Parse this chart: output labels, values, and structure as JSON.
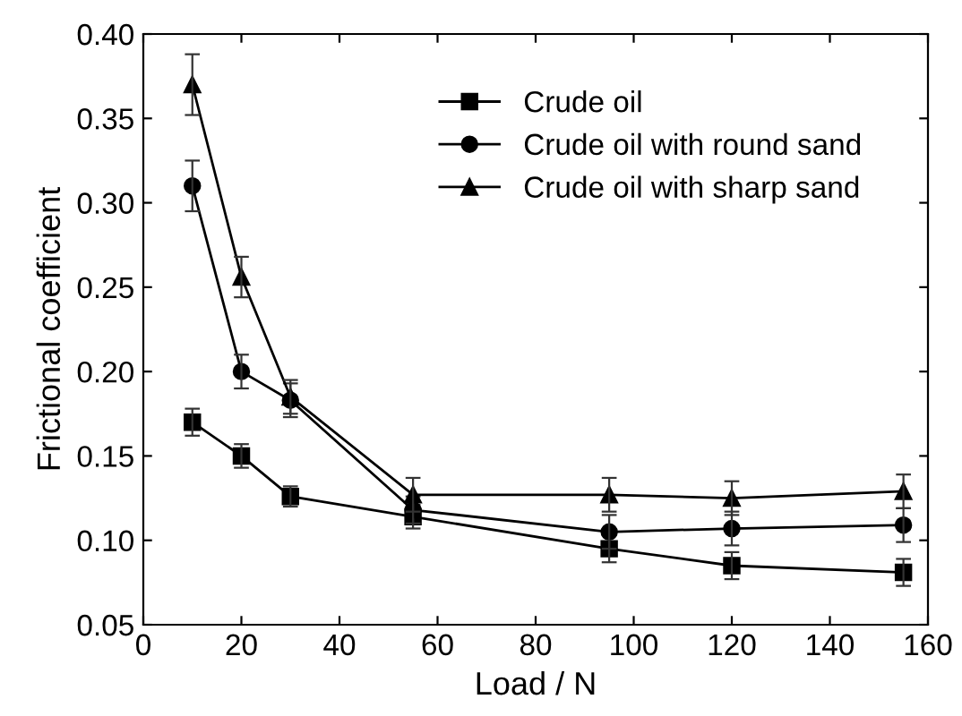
{
  "chart_data": {
    "type": "line",
    "xlabel": "Load / N",
    "ylabel": "Frictional coefficient",
    "x": [
      10,
      20,
      30,
      55,
      95,
      120,
      155
    ],
    "series": [
      {
        "name": "Crude oil",
        "color": "#000000",
        "marker": "square",
        "values": [
          0.17,
          0.15,
          0.126,
          0.114,
          0.095,
          0.085,
          0.081
        ],
        "errors": [
          0.008,
          0.007,
          0.006,
          0.007,
          0.008,
          0.008,
          0.008
        ]
      },
      {
        "name": "Crude oil with round sand",
        "color": "#000000",
        "marker": "circle",
        "values": [
          0.31,
          0.2,
          0.183,
          0.118,
          0.105,
          0.107,
          0.109
        ],
        "errors": [
          0.015,
          0.01,
          0.01,
          0.008,
          0.01,
          0.01,
          0.01
        ]
      },
      {
        "name": "Crude oil with sharp sand",
        "color": "#000000",
        "marker": "triangle",
        "values": [
          0.37,
          0.256,
          0.185,
          0.127,
          0.127,
          0.125,
          0.129
        ],
        "errors": [
          0.018,
          0.012,
          0.01,
          0.01,
          0.01,
          0.01,
          0.01
        ]
      }
    ],
    "xlim": [
      0,
      160
    ],
    "xticks": [
      0,
      20,
      40,
      60,
      80,
      100,
      120,
      140,
      160
    ],
    "ylim": [
      0.05,
      0.4
    ],
    "yticks": [
      {
        "value": 0.05,
        "label": "0.05"
      },
      {
        "value": 0.1,
        "label": "0.10"
      },
      {
        "value": 0.15,
        "label": "0.15"
      },
      {
        "value": 0.2,
        "label": "0.20"
      },
      {
        "value": 0.25,
        "label": "0.25"
      },
      {
        "value": 0.3,
        "label": "0.30"
      },
      {
        "value": 0.35,
        "label": "0.35"
      },
      {
        "value": 0.4,
        "label": "0.40"
      }
    ],
    "grid": false,
    "legend": "top right",
    "line_style": "solid"
  }
}
